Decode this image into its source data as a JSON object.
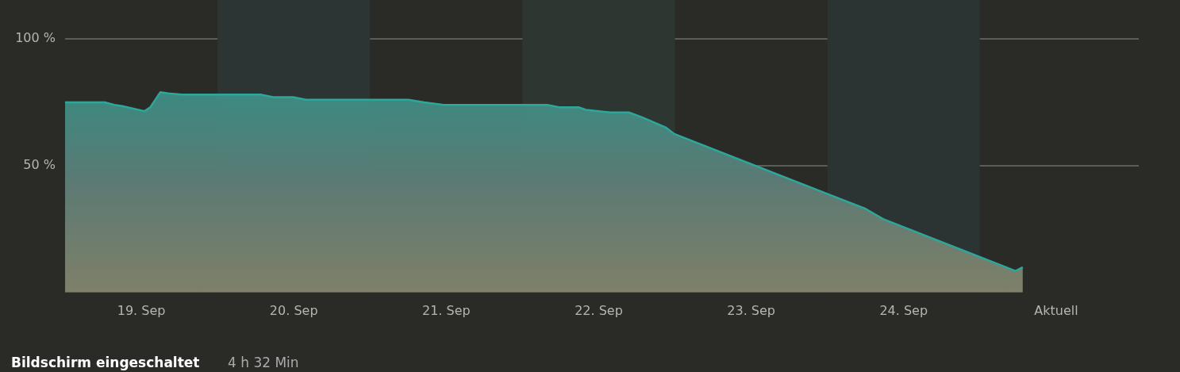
{
  "chart_data": {
    "type": "area",
    "x": [
      "--09-19T00:00",
      "--09-19T06:15",
      "--09-19T07:45",
      "--09-19T09:00",
      "--09-19T10:45",
      "--09-19T12:30",
      "--09-19T13:24",
      "--09-19T15:00",
      "--09-19T16:15",
      "--09-19T18:24",
      "--09-20T06:54",
      "--09-20T08:45",
      "--09-20T11:54",
      "--09-20T13:54",
      "--09-21T06:00",
      "--09-21T08:30",
      "--09-21T11:36",
      "--09-22T03:54",
      "--09-22T05:45",
      "--09-22T08:54",
      "--09-22T10:00",
      "--09-22T13:54",
      "--09-22T16:45",
      "--09-22T18:54",
      "--09-22T22:36",
      "--09-22T23:54",
      "--09-24T06:00",
      "--09-24T08:45",
      "--09-25T05:36",
      "--09-25T06:45"
    ],
    "series": [
      {
        "color": "#2ea79b",
        "values": [
          75,
          75,
          74,
          73.5,
          72.5,
          71.5,
          73,
          79,
          78.5,
          78,
          78,
          77,
          77,
          76,
          76,
          75,
          74,
          74,
          73,
          73,
          72,
          71,
          71,
          69,
          65,
          62.5,
          33,
          29,
          8.5,
          10
        ]
      }
    ],
    "xlim": [
      "--09-19T00:00",
      "--09-26T01:00"
    ],
    "xticks": [
      {
        "value": "--09-19T12:00",
        "label": "19. Sep"
      },
      {
        "value": "--09-20T12:00",
        "label": "20. Sep"
      },
      {
        "value": "--09-21T12:00",
        "label": "21. Sep"
      },
      {
        "value": "--09-22T12:00",
        "label": "22. Sep"
      },
      {
        "value": "--09-23T12:00",
        "label": "23. Sep"
      },
      {
        "value": "--09-24T12:00",
        "label": "24. Sep"
      },
      {
        "value": "--09-25T12:00",
        "label": "Aktuell"
      }
    ],
    "ylim": [
      0,
      100
    ],
    "yticks": [
      {
        "value": 50,
        "label": "50 %"
      },
      {
        "value": 100,
        "label": "100 %"
      }
    ],
    "grid": "y",
    "legend": false,
    "bands": [
      {
        "axis": "x",
        "from": "--09-20T00:00",
        "to": "--09-21T00:00",
        "color": "#2c3533"
      },
      {
        "axis": "x",
        "from": "--09-22T00:00",
        "to": "--09-23T00:00",
        "color": "#2d3631"
      },
      {
        "axis": "x",
        "from": "--09-24T00:00",
        "to": "--09-25T00:00",
        "color": "#2b3433"
      }
    ],
    "annotations": [
      "Bildschirm eingeschaltet",
      "4 h 32 Min"
    ]
  }
}
